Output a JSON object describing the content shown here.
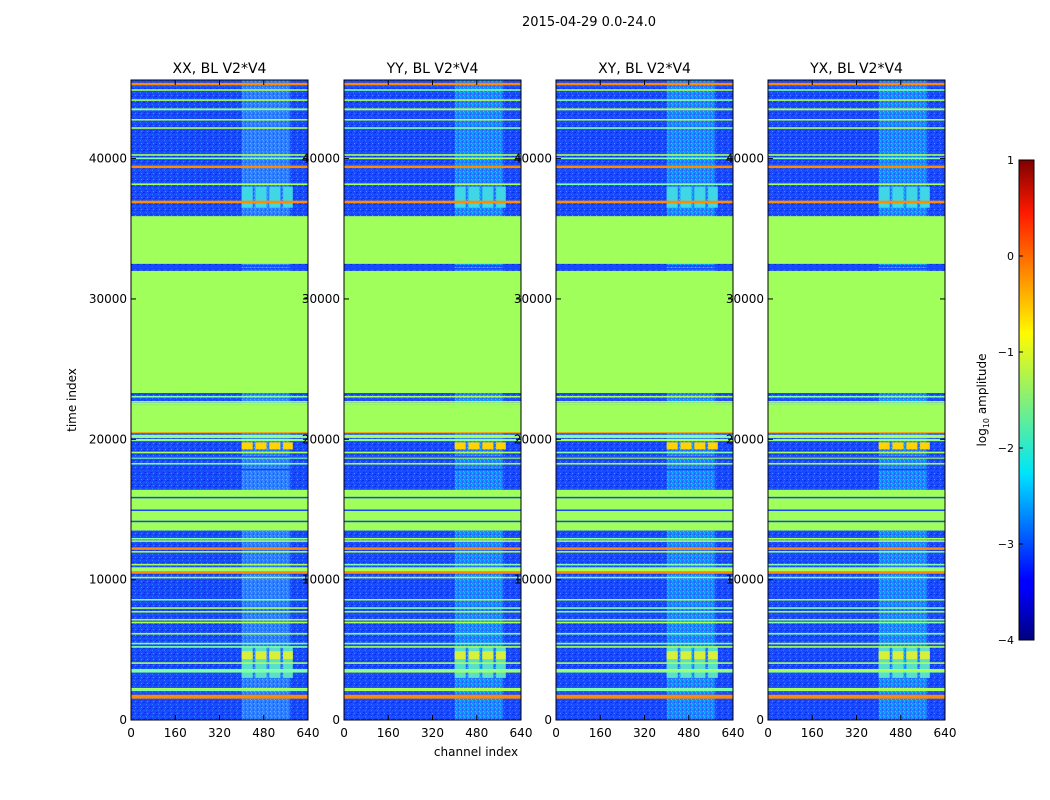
{
  "figure_title": "2015-04-29 0.0-24.0",
  "colors": {
    "background_band": "#a0ff5a",
    "noise_base": "#1446ff",
    "panel_frame": "#000000"
  },
  "chart_data": {
    "type": "heatmap",
    "suptitle": "2015-04-29 0.0-24.0",
    "xlabel": "channel index",
    "ylabel": "time index",
    "xlim": [
      0,
      640
    ],
    "ylim": [
      0,
      45600
    ],
    "x_ticks": [
      0,
      160,
      320,
      480,
      640
    ],
    "y_ticks": [
      0,
      10000,
      20000,
      30000,
      40000
    ],
    "panels": [
      {
        "title": "XX, BL V2*V4",
        "pol": "XX",
        "strong_blocks_t": [
          19500
        ]
      },
      {
        "title": "YY, BL V2*V4",
        "pol": "YY",
        "strong_blocks_t": [
          19500
        ]
      },
      {
        "title": "XY, BL V2*V4",
        "pol": "XY",
        "strong_blocks_t": [
          19500
        ]
      },
      {
        "title": "YX, BL V2*V4",
        "pol": "YX",
        "strong_blocks_t": [
          19500
        ]
      }
    ],
    "flat_bands_t": [
      {
        "t0": 23300,
        "t1": 32000,
        "log10_amp": -1.1
      },
      {
        "t0": 32500,
        "t1": 35900,
        "log10_amp": -1.1
      },
      {
        "t0": 13500,
        "t1": 16400,
        "log10_amp": -1.1
      },
      {
        "t0": 20500,
        "t1": 22500,
        "log10_amp": -1.1
      }
    ],
    "rfi_channel_range": [
      400,
      575
    ],
    "colorbar": {
      "label": "log10 amplitude",
      "label_text": "log",
      "label_sub": "10",
      "label_rest": " amplitude",
      "vmin": -4,
      "vmax": 1,
      "ticks": [
        1,
        0,
        -1,
        -2,
        -3,
        -4
      ],
      "tick_labels": [
        "1",
        "0",
        "−1",
        "−2",
        "−3",
        "−4"
      ],
      "colormap": "jet"
    }
  }
}
